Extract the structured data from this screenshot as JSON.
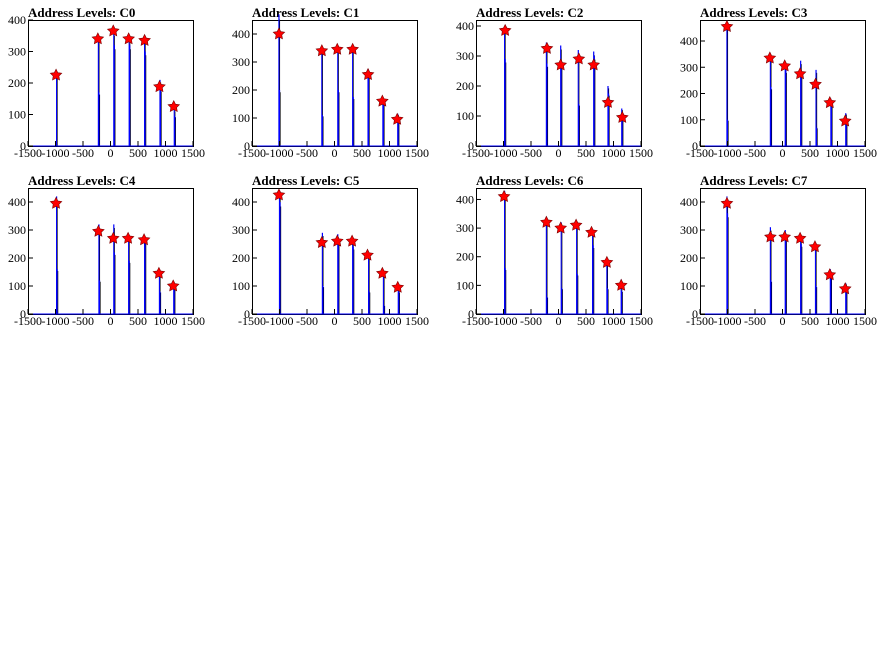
{
  "colors": {
    "histogram": "#0000ff",
    "marker": "#ff0000",
    "marker_edge": "#7a0000"
  },
  "chart_data": [
    {
      "type": "histogram",
      "title": "Address Levels: C0",
      "xlim": [
        -1500,
        1500
      ],
      "ylim": [
        0,
        400
      ],
      "xticks": [
        -1500,
        -1000,
        -500,
        0,
        500,
        1000,
        1500
      ],
      "yticks": [
        0,
        100,
        200,
        300,
        400
      ],
      "grid": false,
      "bins": [
        [
          -980,
          225
        ],
        [
          -220,
          340
        ],
        [
          -210,
          170
        ],
        [
          60,
          365
        ],
        [
          70,
          320
        ],
        [
          340,
          340
        ],
        [
          350,
          320
        ],
        [
          620,
          340
        ],
        [
          630,
          300
        ],
        [
          900,
          210
        ],
        [
          910,
          180
        ],
        [
          1160,
          115
        ],
        [
          1170,
          95
        ]
      ],
      "peaks": [
        [
          -990,
          225
        ],
        [
          -230,
          340
        ],
        [
          50,
          365
        ],
        [
          330,
          340
        ],
        [
          620,
          335
        ],
        [
          890,
          188
        ],
        [
          1150,
          125
        ]
      ]
    },
    {
      "type": "histogram",
      "title": "Address Levels: C1",
      "xlim": [
        -1500,
        1500
      ],
      "ylim": [
        0,
        450
      ],
      "xticks": [
        -1500,
        -1000,
        -500,
        0,
        500,
        1000,
        1500
      ],
      "yticks": [
        0,
        100,
        200,
        300,
        400
      ],
      "grid": false,
      "bins": [
        [
          -1010,
          470
        ],
        [
          -1000,
          200
        ],
        [
          -230,
          355
        ],
        [
          -220,
          110
        ],
        [
          60,
          350
        ],
        [
          70,
          200
        ],
        [
          330,
          355
        ],
        [
          340,
          175
        ],
        [
          610,
          275
        ],
        [
          620,
          255
        ],
        [
          880,
          175
        ],
        [
          890,
          160
        ],
        [
          1150,
          115
        ],
        [
          1160,
          105
        ]
      ],
      "peaks": [
        [
          -1010,
          400
        ],
        [
          -230,
          340
        ],
        [
          50,
          345
        ],
        [
          330,
          345
        ],
        [
          610,
          255
        ],
        [
          870,
          160
        ],
        [
          1140,
          95
        ]
      ]
    },
    {
      "type": "histogram",
      "title": "Address Levels: C2",
      "xlim": [
        -1500,
        1500
      ],
      "ylim": [
        0,
        420
      ],
      "xticks": [
        -1500,
        -1000,
        -500,
        0,
        500,
        1000,
        1500
      ],
      "yticks": [
        0,
        100,
        200,
        300,
        400
      ],
      "grid": false,
      "bins": [
        [
          -980,
          400
        ],
        [
          -970,
          290
        ],
        [
          -220,
          345
        ],
        [
          -210,
          275
        ],
        [
          40,
          335
        ],
        [
          50,
          275
        ],
        [
          360,
          320
        ],
        [
          370,
          140
        ],
        [
          640,
          315
        ],
        [
          650,
          300
        ],
        [
          900,
          200
        ],
        [
          910,
          175
        ],
        [
          1150,
          125
        ],
        [
          1160,
          105
        ]
      ],
      "peaks": [
        [
          -970,
          385
        ],
        [
          -210,
          325
        ],
        [
          40,
          270
        ],
        [
          370,
          290
        ],
        [
          640,
          270
        ],
        [
          900,
          145
        ],
        [
          1160,
          95
        ]
      ]
    },
    {
      "type": "histogram",
      "title": "Address Levels: C3",
      "xlim": [
        -1500,
        1500
      ],
      "ylim": [
        0,
        480
      ],
      "xticks": [
        -1500,
        -1000,
        -500,
        0,
        500,
        1000,
        1500
      ],
      "yticks": [
        0,
        100,
        200,
        300,
        400
      ],
      "grid": false,
      "bins": [
        [
          -1010,
          470
        ],
        [
          -1000,
          100
        ],
        [
          -220,
          350
        ],
        [
          -210,
          225
        ],
        [
          50,
          320
        ],
        [
          60,
          290
        ],
        [
          330,
          325
        ],
        [
          340,
          290
        ],
        [
          610,
          290
        ],
        [
          620,
          70
        ],
        [
          880,
          180
        ],
        [
          890,
          165
        ],
        [
          1150,
          125
        ],
        [
          1160,
          110
        ]
      ],
      "peaks": [
        [
          -1010,
          455
        ],
        [
          -230,
          335
        ],
        [
          40,
          305
        ],
        [
          320,
          275
        ],
        [
          600,
          235
        ],
        [
          860,
          165
        ],
        [
          1140,
          95
        ]
      ]
    },
    {
      "type": "histogram",
      "title": "Address Levels: C4",
      "xlim": [
        -1500,
        1500
      ],
      "ylim": [
        0,
        450
      ],
      "xticks": [
        -1500,
        -1000,
        -500,
        0,
        500,
        1000,
        1500
      ],
      "yticks": [
        0,
        100,
        200,
        300,
        400
      ],
      "grid": false,
      "bins": [
        [
          -980,
          420
        ],
        [
          -970,
          160
        ],
        [
          -210,
          320
        ],
        [
          -200,
          120
        ],
        [
          60,
          320
        ],
        [
          70,
          220
        ],
        [
          330,
          280
        ],
        [
          340,
          190
        ],
        [
          620,
          275
        ],
        [
          630,
          260
        ],
        [
          890,
          160
        ],
        [
          900,
          80
        ],
        [
          1150,
          110
        ],
        [
          1160,
          95
        ]
      ],
      "peaks": [
        [
          -990,
          395
        ],
        [
          -220,
          295
        ],
        [
          50,
          270
        ],
        [
          320,
          270
        ],
        [
          610,
          265
        ],
        [
          880,
          145
        ],
        [
          1140,
          100
        ]
      ]
    },
    {
      "type": "histogram",
      "title": "Address Levels: C5",
      "xlim": [
        -1500,
        1500
      ],
      "ylim": [
        0,
        450
      ],
      "xticks": [
        -1500,
        -1000,
        -500,
        0,
        500,
        1000,
        1500
      ],
      "yticks": [
        0,
        100,
        200,
        300,
        400
      ],
      "grid": false,
      "bins": [
        [
          -1000,
          440
        ],
        [
          -990,
          400
        ],
        [
          -220,
          290
        ],
        [
          -210,
          100
        ],
        [
          60,
          285
        ],
        [
          70,
          270
        ],
        [
          330,
          270
        ],
        [
          340,
          240
        ],
        [
          620,
          220
        ],
        [
          630,
          80
        ],
        [
          890,
          150
        ],
        [
          900,
          30
        ],
        [
          1160,
          110
        ],
        [
          1170,
          80
        ]
      ],
      "peaks": [
        [
          -1010,
          425
        ],
        [
          -230,
          255
        ],
        [
          50,
          260
        ],
        [
          320,
          260
        ],
        [
          600,
          210
        ],
        [
          870,
          145
        ],
        [
          1150,
          95
        ]
      ]
    },
    {
      "type": "histogram",
      "title": "Address Levels: C6",
      "xlim": [
        -1500,
        1500
      ],
      "ylim": [
        0,
        440
      ],
      "xticks": [
        -1500,
        -1000,
        -500,
        0,
        500,
        1000,
        1500
      ],
      "yticks": [
        0,
        100,
        200,
        300,
        400
      ],
      "grid": false,
      "bins": [
        [
          -980,
          430
        ],
        [
          -970,
          160
        ],
        [
          -220,
          340
        ],
        [
          -210,
          60
        ],
        [
          50,
          320
        ],
        [
          60,
          90
        ],
        [
          330,
          315
        ],
        [
          340,
          140
        ],
        [
          620,
          290
        ],
        [
          630,
          240
        ],
        [
          880,
          190
        ],
        [
          890,
          90
        ],
        [
          1140,
          120
        ],
        [
          1150,
          80
        ]
      ],
      "peaks": [
        [
          -990,
          410
        ],
        [
          -220,
          320
        ],
        [
          40,
          300
        ],
        [
          320,
          310
        ],
        [
          600,
          285
        ],
        [
          880,
          180
        ],
        [
          1140,
          100
        ]
      ]
    },
    {
      "type": "histogram",
      "title": "Address Levels: C7",
      "xlim": [
        -1500,
        1500
      ],
      "ylim": [
        0,
        450
      ],
      "xticks": [
        -1500,
        -1000,
        -500,
        0,
        500,
        1000,
        1500
      ],
      "yticks": [
        0,
        100,
        200,
        300,
        400
      ],
      "grid": false,
      "bins": [
        [
          -1010,
          420
        ],
        [
          -1000,
          360
        ],
        [
          -220,
          310
        ],
        [
          -210,
          120
        ],
        [
          50,
          300
        ],
        [
          60,
          270
        ],
        [
          330,
          280
        ],
        [
          340,
          250
        ],
        [
          600,
          250
        ],
        [
          610,
          100
        ],
        [
          870,
          160
        ],
        [
          880,
          130
        ],
        [
          1150,
          110
        ],
        [
          1160,
          90
        ]
      ],
      "peaks": [
        [
          -1010,
          395
        ],
        [
          -220,
          275
        ],
        [
          40,
          275
        ],
        [
          320,
          270
        ],
        [
          590,
          240
        ],
        [
          860,
          140
        ],
        [
          1140,
          90
        ]
      ]
    }
  ]
}
